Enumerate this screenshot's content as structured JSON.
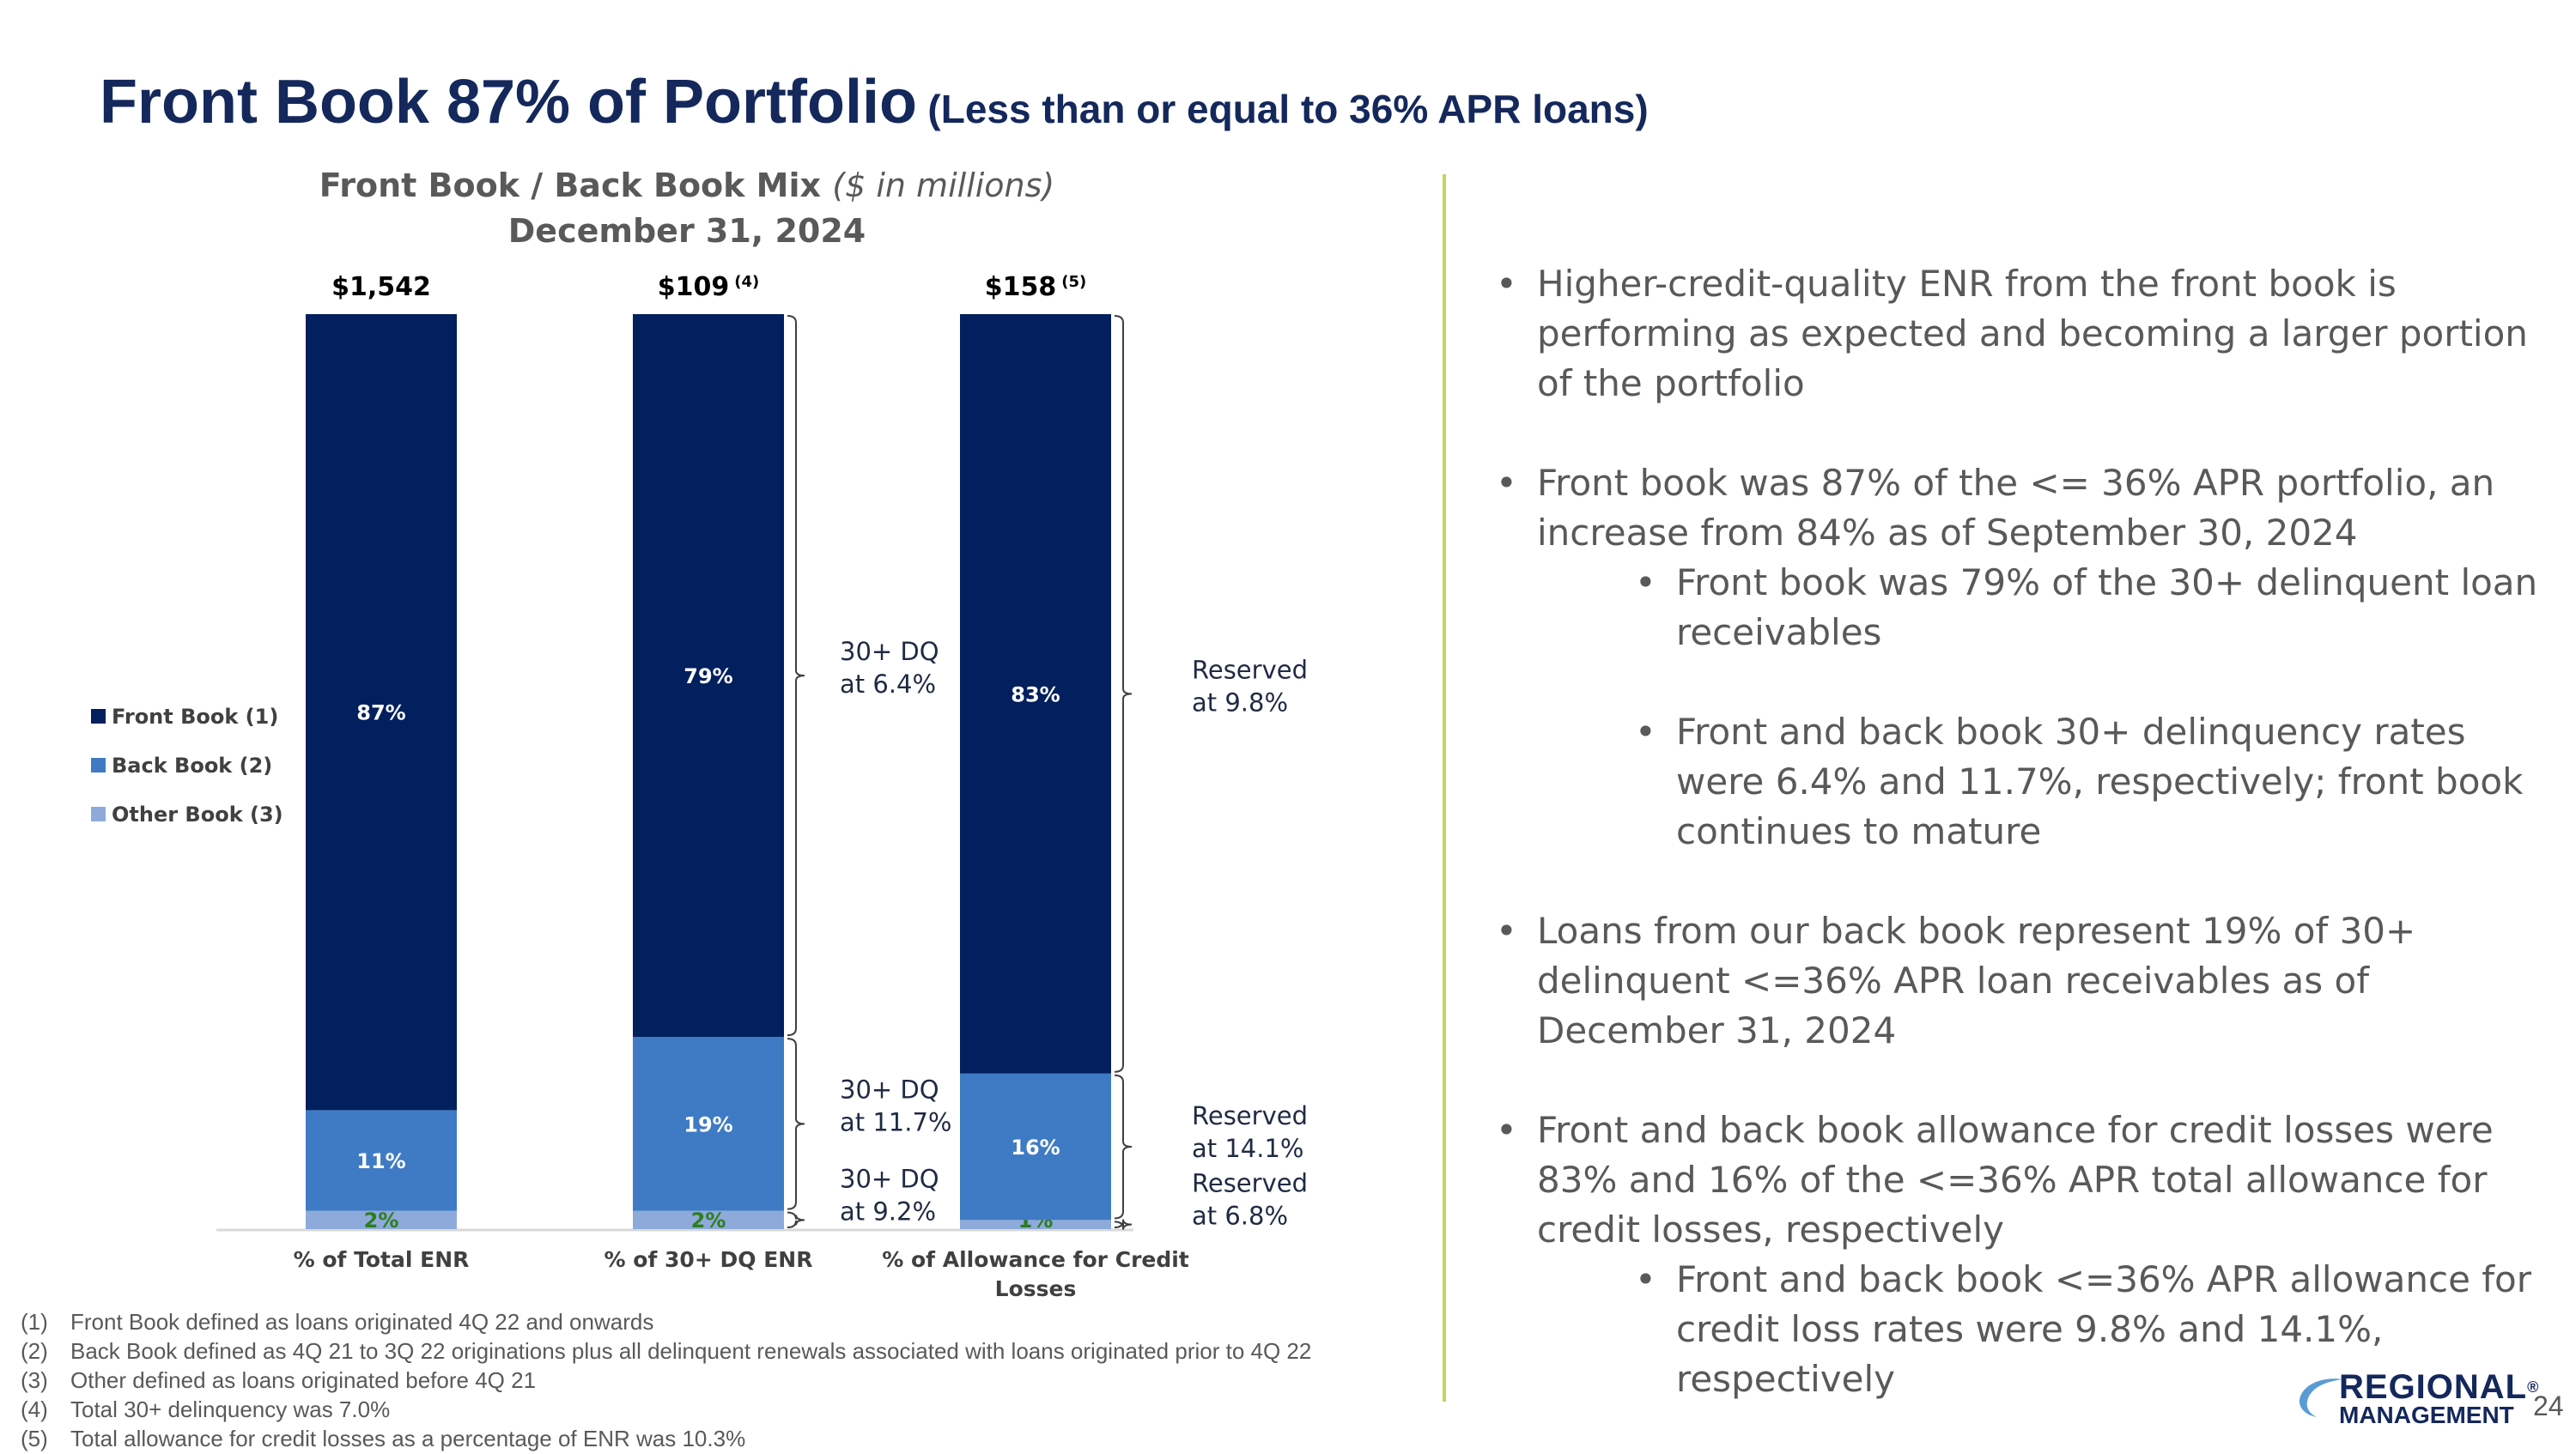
{
  "title": {
    "main": "Front Book 87% of Portfolio",
    "sub": "(Less than or equal to 36% APR loans)"
  },
  "chart_data": {
    "type": "bar",
    "stacked": true,
    "normalized": true,
    "title": "Front Book / Back Book Mix",
    "units": "($ in millions)",
    "date": "December 31, 2024",
    "categories": [
      "% of Total ENR",
      "% of 30+ DQ ENR",
      "% of Allowance for Credit Losses"
    ],
    "totals": [
      {
        "value": "$1,542",
        "note": ""
      },
      {
        "value": "$109",
        "note": "(4)"
      },
      {
        "value": "$158",
        "note": "(5)"
      }
    ],
    "series": [
      {
        "name": "Other Book (3)",
        "color": "#8eaadb",
        "values": [
          2,
          2,
          1
        ],
        "labels": [
          "2%",
          "2%",
          "1%"
        ]
      },
      {
        "name": "Back Book (2)",
        "color": "#3e7bc4",
        "values": [
          11,
          19,
          16
        ],
        "labels": [
          "11%",
          "19%",
          "16%"
        ]
      },
      {
        "name": "Front Book (1)",
        "color": "#021f5e",
        "values": [
          87,
          79,
          83
        ],
        "labels": [
          "87%",
          "79%",
          "83%"
        ]
      }
    ],
    "legend": [
      "Front Book (1)",
      "Back Book (2)",
      "Other Book (3)"
    ],
    "legend_position": "left",
    "annotations": {
      "dq": [
        {
          "series": "Front Book (1)",
          "line1": "30+ DQ",
          "line2": "at 6.4%"
        },
        {
          "series": "Back Book (2)",
          "line1": "30+ DQ",
          "line2": "at 11.7%"
        },
        {
          "series": "Other Book (3)",
          "line1": "30+ DQ",
          "line2": "at 9.2%"
        }
      ],
      "reserved": [
        {
          "series": "Front Book (1)",
          "line1": "Reserved",
          "line2": "at 9.8%"
        },
        {
          "series": "Back Book (2)",
          "line1": "Reserved",
          "line2": "at 14.1%"
        },
        {
          "series": "Other Book (3)",
          "line1": "Reserved",
          "line2": "at 6.8%"
        }
      ]
    },
    "colors": {
      "other_label": "#2e7d1f",
      "bar_label": "#ffffff"
    }
  },
  "bullets": [
    {
      "text": "Higher-credit-quality ENR from the front book is performing as expected and becoming a larger portion of the portfolio",
      "sub": []
    },
    {
      "text": "Front book was 87% of the <= 36% APR portfolio, an increase from 84% as of September 30, 2024",
      "sub": [
        "Front book was 79% of the 30+ delinquent loan receivables",
        "Front and back book 30+ delinquency rates were 6.4% and 11.7%, respectively; front book continues to mature"
      ]
    },
    {
      "text": "Loans from our back book represent 19% of 30+ delinquent <=36% APR loan receivables as of December 31, 2024",
      "sub": []
    },
    {
      "text": "Front and back book allowance for credit losses were 83% and 16% of the <=36% APR total allowance for credit losses, respectively",
      "sub": [
        "Front and back book <=36% APR allowance for credit loss rates were 9.8% and 14.1%, respectively"
      ]
    }
  ],
  "footnotes": [
    {
      "num": "(1)",
      "text": "Front Book defined as loans originated 4Q 22 and onwards"
    },
    {
      "num": "(2)",
      "text": "Back Book defined as 4Q 21 to 3Q 22 originations plus all delinquent renewals associated with loans originated prior to 4Q 22"
    },
    {
      "num": "(3)",
      "text": "Other defined as loans originated before 4Q 21"
    },
    {
      "num": "(4)",
      "text": "Total 30+ delinquency was 7.0%"
    },
    {
      "num": "(5)",
      "text": "Total allowance for credit losses as a percentage of ENR was 10.3%"
    }
  ],
  "logo": {
    "line1": "REGIONAL",
    "line2": "MANAGEMENT",
    "mark": "®"
  },
  "page_number": "24"
}
